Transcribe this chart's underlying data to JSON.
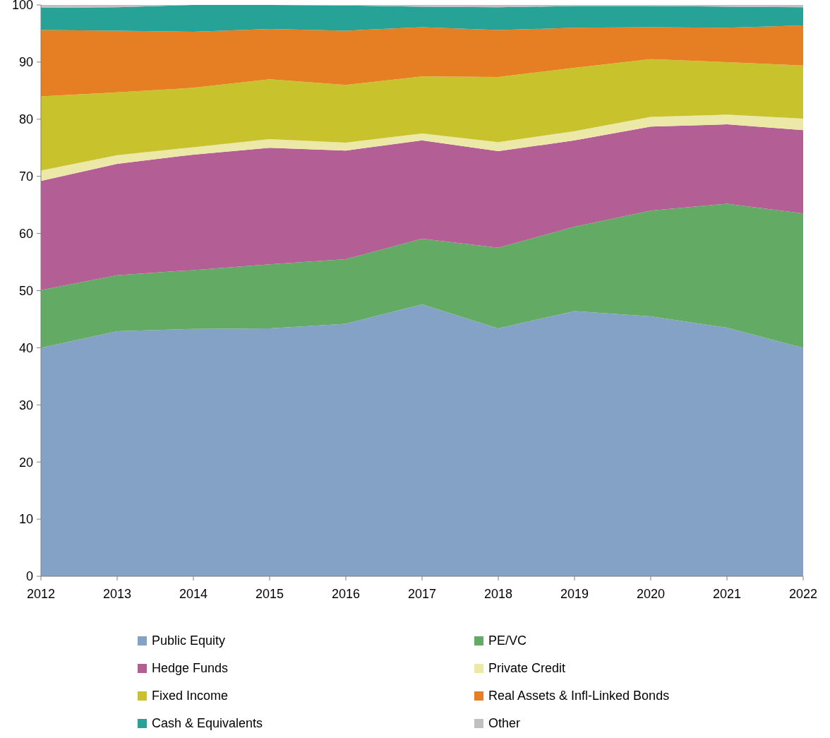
{
  "chart_data": {
    "type": "area",
    "stacked": true,
    "categories": [
      "2012",
      "2013",
      "2014",
      "2015",
      "2016",
      "2017",
      "2018",
      "2019",
      "2020",
      "2021",
      "2022"
    ],
    "ylim": [
      0,
      100
    ],
    "yticks": [
      0,
      10,
      20,
      30,
      40,
      50,
      60,
      70,
      80,
      90,
      100
    ],
    "grid": false,
    "legend": "bottom",
    "series": [
      {
        "name": "Public Equity",
        "color": "#84a2c6",
        "values": [
          40.0,
          42.9,
          43.3,
          43.4,
          44.2,
          47.6,
          43.4,
          46.4,
          45.5,
          43.5,
          40.0
        ]
      },
      {
        "name": "PE/VC",
        "color": "#63aa65",
        "values": [
          10.1,
          9.8,
          10.3,
          11.2,
          11.3,
          11.5,
          14.1,
          14.8,
          18.5,
          21.7,
          23.5
        ]
      },
      {
        "name": "Hedge Funds",
        "color": "#b35f96",
        "values": [
          19.1,
          19.5,
          20.2,
          20.4,
          19.0,
          17.2,
          16.9,
          15.1,
          14.7,
          13.9,
          14.6
        ]
      },
      {
        "name": "Private Credit",
        "color": "#ece8a8",
        "values": [
          1.8,
          1.5,
          1.3,
          1.5,
          1.4,
          1.2,
          1.6,
          1.6,
          1.7,
          1.7,
          2.0
        ]
      },
      {
        "name": "Fixed Income",
        "color": "#c8c32d",
        "values": [
          13.0,
          11.0,
          10.4,
          10.5,
          10.1,
          10.0,
          11.4,
          11.1,
          10.1,
          9.2,
          9.3
        ]
      },
      {
        "name": "Real Assets & Infl-Linked Bonds",
        "color": "#e67f23",
        "values": [
          11.6,
          10.8,
          9.8,
          8.8,
          9.5,
          8.6,
          8.2,
          7.0,
          5.6,
          6.0,
          7.0
        ]
      },
      {
        "name": "Cash & Equivalents",
        "color": "#26a297",
        "values": [
          3.9,
          4.1,
          4.7,
          4.2,
          4.4,
          3.6,
          4.0,
          3.8,
          3.7,
          3.7,
          3.2
        ]
      },
      {
        "name": "Other",
        "color": "#c0c0c0",
        "values": [
          0.5,
          0.4,
          0,
          0,
          0.1,
          0.3,
          0.4,
          0.2,
          0.2,
          0.3,
          0.4
        ]
      }
    ]
  }
}
